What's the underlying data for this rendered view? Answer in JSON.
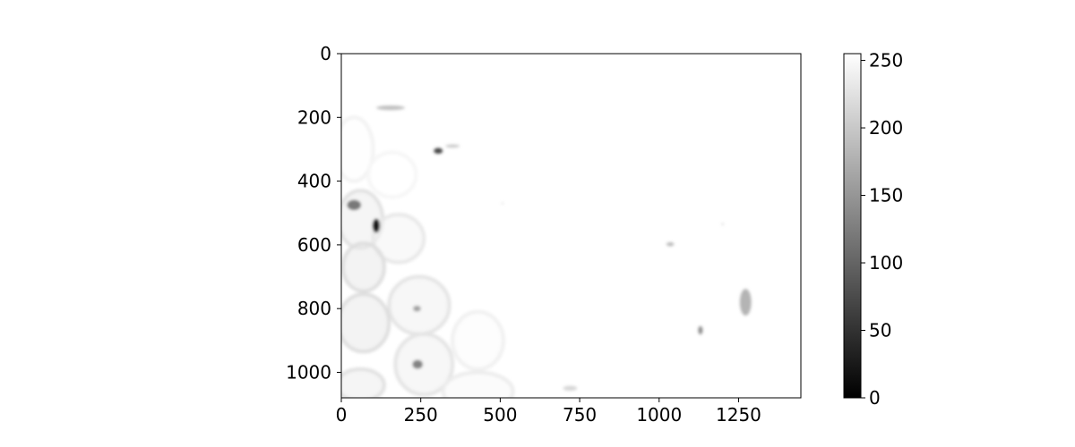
{
  "chart_data": {
    "type": "heatmap",
    "colormap": "gray",
    "image": {
      "width": 1446,
      "height": 1080
    },
    "x_axis": {
      "range": [
        0,
        1446
      ],
      "ticks": [
        0,
        250,
        500,
        750,
        1000,
        1250
      ],
      "tick_labels": [
        "0",
        "250",
        "500",
        "750",
        "1000",
        "1250"
      ]
    },
    "y_axis": {
      "range": [
        0,
        1080
      ],
      "inverted": true,
      "ticks": [
        0,
        200,
        400,
        600,
        800,
        1000
      ],
      "tick_labels": [
        "0",
        "200",
        "400",
        "600",
        "800",
        "1000"
      ]
    },
    "colorbar": {
      "range": [
        0,
        255
      ],
      "ticks": [
        0,
        50,
        100,
        150,
        200,
        250
      ],
      "tick_labels": [
        "0",
        "50",
        "100",
        "150",
        "200",
        "250"
      ]
    },
    "grid": false,
    "content": {
      "background_value": 255,
      "rings": [
        {
          "x": 60,
          "y": 520,
          "rx": 70,
          "ry": 90,
          "value": 225
        },
        {
          "x": 180,
          "y": 580,
          "rx": 80,
          "ry": 75,
          "value": 232
        },
        {
          "x": 70,
          "y": 670,
          "rx": 65,
          "ry": 75,
          "value": 222
        },
        {
          "x": 245,
          "y": 790,
          "rx": 95,
          "ry": 90,
          "value": 228
        },
        {
          "x": 70,
          "y": 845,
          "rx": 80,
          "ry": 90,
          "value": 222
        },
        {
          "x": 260,
          "y": 975,
          "rx": 90,
          "ry": 95,
          "value": 228
        },
        {
          "x": 430,
          "y": 900,
          "rx": 80,
          "ry": 90,
          "value": 240
        },
        {
          "x": 60,
          "y": 1040,
          "rx": 75,
          "ry": 50,
          "value": 225
        },
        {
          "x": 430,
          "y": 1060,
          "rx": 110,
          "ry": 60,
          "value": 236
        },
        {
          "x": 40,
          "y": 300,
          "rx": 60,
          "ry": 100,
          "value": 242
        },
        {
          "x": 160,
          "y": 380,
          "rx": 75,
          "ry": 70,
          "value": 246
        }
      ],
      "spots": [
        {
          "x": 40,
          "y": 475,
          "rx": 22,
          "ry": 16,
          "value": 120
        },
        {
          "x": 110,
          "y": 540,
          "rx": 12,
          "ry": 22,
          "value": 20
        },
        {
          "x": 305,
          "y": 305,
          "rx": 14,
          "ry": 9,
          "value": 70
        },
        {
          "x": 155,
          "y": 170,
          "rx": 45,
          "ry": 7,
          "value": 190
        },
        {
          "x": 350,
          "y": 290,
          "rx": 22,
          "ry": 5,
          "value": 200
        },
        {
          "x": 238,
          "y": 800,
          "rx": 12,
          "ry": 9,
          "value": 160
        },
        {
          "x": 240,
          "y": 975,
          "rx": 16,
          "ry": 14,
          "value": 130
        },
        {
          "x": 1035,
          "y": 598,
          "rx": 12,
          "ry": 6,
          "value": 185
        },
        {
          "x": 1130,
          "y": 868,
          "rx": 7,
          "ry": 13,
          "value": 140
        },
        {
          "x": 1272,
          "y": 780,
          "rx": 18,
          "ry": 42,
          "value": 180
        },
        {
          "x": 720,
          "y": 1050,
          "rx": 22,
          "ry": 8,
          "value": 215
        },
        {
          "x": 1200,
          "y": 535,
          "rx": 3,
          "ry": 3,
          "value": 200
        },
        {
          "x": 507,
          "y": 470,
          "rx": 3,
          "ry": 3,
          "value": 210
        }
      ]
    }
  }
}
